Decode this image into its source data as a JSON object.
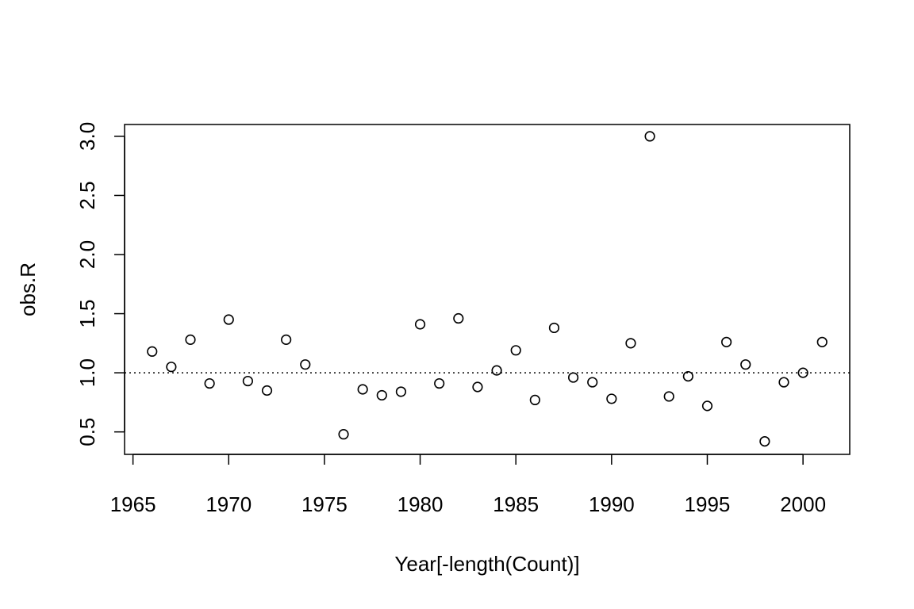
{
  "chart_data": {
    "type": "scatter",
    "xlabel": "Year[-length(Count)]",
    "ylabel": "obs.R",
    "xlim": [
      1964.56,
      2002.44
    ],
    "ylim": [
      0.31,
      3.1
    ],
    "x_ticks": [
      1965,
      1970,
      1975,
      1980,
      1985,
      1990,
      1995,
      2000
    ],
    "x_tick_labels": [
      "1965",
      "1970",
      "1975",
      "1980",
      "1985",
      "1990",
      "1995",
      "2000"
    ],
    "y_ticks": [
      0.5,
      1.0,
      1.5,
      2.0,
      2.5,
      3.0
    ],
    "y_tick_labels": [
      "0.5",
      "1.0",
      "1.5",
      "2.0",
      "2.5",
      "3.0"
    ],
    "reference_line": {
      "y": 1.0,
      "style": "dotted"
    },
    "x": [
      1966,
      1967,
      1968,
      1969,
      1970,
      1971,
      1972,
      1973,
      1974,
      1976,
      1977,
      1978,
      1979,
      1980,
      1981,
      1982,
      1983,
      1984,
      1985,
      1986,
      1987,
      1988,
      1989,
      1990,
      1991,
      1992,
      1993,
      1994,
      1995,
      1996,
      1997,
      1998,
      1999,
      2000,
      2001
    ],
    "y": [
      1.18,
      1.05,
      1.28,
      0.91,
      1.45,
      0.93,
      0.85,
      1.28,
      1.07,
      0.48,
      0.86,
      0.81,
      0.84,
      1.41,
      0.91,
      1.46,
      0.88,
      1.02,
      1.19,
      0.77,
      1.38,
      0.96,
      0.92,
      0.78,
      1.25,
      3.0,
      0.8,
      0.97,
      0.72,
      1.26,
      1.07,
      0.42,
      0.92,
      1.0,
      1.26
    ],
    "grid": false,
    "legend": "none"
  }
}
